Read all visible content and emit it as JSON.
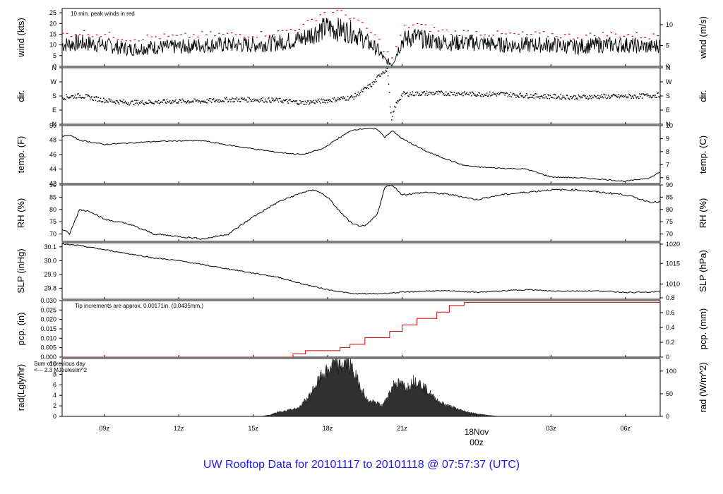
{
  "footer_title": "UW Rooftop Data for 20101117  to  20101118 @ 07:57:37  (UTC)",
  "colors": {
    "axis": "#000000",
    "peak": "#e00000",
    "annot_red": "#cc0000",
    "annot_purple": "#a000c0",
    "footer": "#1a1aff",
    "rad_fill": "#303030"
  },
  "time_axis": {
    "x_range_hours": [
      7.3,
      31.4
    ],
    "ticks": [
      {
        "hour": 9,
        "label": "09z"
      },
      {
        "hour": 12,
        "label": "12z"
      },
      {
        "hour": 15,
        "label": "15z"
      },
      {
        "hour": 18,
        "label": "18z"
      },
      {
        "hour": 21,
        "label": "21z"
      },
      {
        "hour": 27,
        "label": "03z"
      },
      {
        "hour": 30,
        "label": "06z"
      }
    ],
    "date_marker": {
      "hour": 24,
      "line1": "18Nov",
      "line2": "00z"
    }
  },
  "chart_data": [
    {
      "id": "wind",
      "type": "line",
      "left_label": "wind (kts)",
      "right_label": "wind (m/s)",
      "ylim": [
        0,
        27
      ],
      "left_ticks": [
        "0",
        "5",
        "10",
        "15",
        "20",
        "25"
      ],
      "right_ticks": [
        {
          "value": 0,
          "label": "0"
        },
        {
          "value": 9.72,
          "label": "5"
        },
        {
          "value": 19.44,
          "label": "10"
        }
      ],
      "annotation": "10 min. peak winds in red",
      "series": [
        {
          "role": "mean",
          "x": [
            7.3,
            8,
            9,
            10,
            11,
            12,
            13,
            14,
            15,
            16,
            17,
            17.5,
            18,
            18.5,
            19,
            19.5,
            20,
            20.3,
            20.6,
            21,
            21.5,
            22,
            23,
            24,
            25,
            26,
            27,
            28,
            29,
            30,
            31,
            31.4
          ],
          "values": [
            10,
            11,
            10,
            8,
            9,
            9,
            10,
            10,
            10,
            11,
            13,
            16,
            18,
            17,
            16,
            12,
            8,
            3,
            1,
            12,
            14,
            12,
            11,
            11,
            10,
            10,
            10,
            9,
            10,
            10,
            9,
            10
          ]
        },
        {
          "role": "peak",
          "x": [
            7.3,
            8,
            9,
            10,
            11,
            12,
            13,
            14,
            15,
            16,
            17,
            17.5,
            18,
            18.5,
            19,
            19.5,
            20,
            20.3,
            20.6,
            21,
            21.5,
            22,
            23,
            24,
            25,
            26,
            27,
            28,
            29,
            30,
            31,
            31.4
          ],
          "values": [
            15,
            16,
            15,
            13,
            14,
            14,
            15,
            15,
            15,
            16,
            19,
            23,
            27,
            25,
            23,
            18,
            13,
            7,
            4,
            18,
            20,
            18,
            16,
            16,
            15,
            15,
            15,
            14,
            15,
            15,
            14,
            15
          ]
        }
      ]
    },
    {
      "id": "dir",
      "type": "scatter",
      "left_label": "dir.",
      "right_label": "dir.",
      "ylim": [
        0,
        360
      ],
      "left_ticks": [
        {
          "value": 0,
          "label": "N"
        },
        {
          "value": 90,
          "label": "E"
        },
        {
          "value": 180,
          "label": "S"
        },
        {
          "value": 270,
          "label": "W"
        },
        {
          "value": 360,
          "label": "N"
        }
      ],
      "x": [
        7.3,
        8,
        9,
        10,
        11,
        12,
        13,
        14,
        15,
        16,
        17,
        18,
        19,
        19.8,
        20.2,
        20.4,
        20.55,
        20.7,
        21,
        22,
        23,
        24,
        25,
        26,
        27,
        28,
        29,
        30,
        31,
        31.4
      ],
      "values": [
        175,
        185,
        155,
        140,
        145,
        150,
        150,
        160,
        160,
        155,
        140,
        155,
        175,
        260,
        340,
        345,
        20,
        120,
        195,
        200,
        200,
        195,
        195,
        185,
        180,
        175,
        180,
        180,
        185,
        190
      ]
    },
    {
      "id": "temp",
      "type": "line",
      "left_label": "temp. (F)",
      "right_label": "temp. (C)",
      "ylim": [
        42,
        50
      ],
      "left_ticks": [
        "42",
        "44",
        "46",
        "48",
        "50"
      ],
      "right_ticks": [
        {
          "value": 42.8,
          "label": "6"
        },
        {
          "value": 44.6,
          "label": "7"
        },
        {
          "value": 46.4,
          "label": "8"
        },
        {
          "value": 48.2,
          "label": "9"
        },
        {
          "value": 50,
          "label": "10"
        }
      ],
      "x": [
        7.3,
        7.6,
        8,
        9,
        10,
        11,
        12,
        13,
        14,
        15,
        16,
        17,
        17.8,
        18.5,
        19,
        19.5,
        20,
        20.3,
        20.6,
        21,
        22,
        23,
        23.5,
        24,
        25,
        26,
        27,
        28,
        29,
        30,
        31,
        31.4
      ],
      "values": [
        48.5,
        48.7,
        48,
        47.4,
        47.6,
        47.8,
        47.9,
        47.9,
        47.3,
        46.8,
        46.3,
        46.0,
        46.8,
        48.4,
        49.4,
        49.6,
        49.5,
        48.4,
        49.3,
        48.2,
        46.4,
        45.1,
        44.5,
        44.3,
        44.1,
        44.0,
        42.9,
        42.8,
        42.6,
        42.3,
        42.8,
        43.6
      ]
    },
    {
      "id": "rh",
      "type": "line",
      "left_label": "RH (%)",
      "right_label": "RH (%)",
      "ylim": [
        67,
        90
      ],
      "left_ticks": [
        "70",
        "75",
        "80",
        "85",
        "90"
      ],
      "right_ticks": [
        {
          "value": 70,
          "label": "70"
        },
        {
          "value": 75,
          "label": "75"
        },
        {
          "value": 80,
          "label": "80"
        },
        {
          "value": 85,
          "label": "85"
        },
        {
          "value": 90,
          "label": "90"
        }
      ],
      "x": [
        7.3,
        7.6,
        8,
        8.5,
        9,
        10,
        11,
        12,
        13,
        14,
        15,
        16,
        17,
        17.5,
        18,
        18.5,
        19,
        19.5,
        20,
        20.3,
        20.6,
        21,
        22,
        23,
        23.5,
        24,
        25,
        26,
        27,
        28,
        29,
        30,
        31,
        31.4
      ],
      "values": [
        72,
        70,
        80,
        79,
        76,
        74,
        70,
        69,
        68,
        70,
        77,
        83,
        87,
        88,
        85,
        79,
        74,
        73,
        78,
        89,
        90,
        86,
        87,
        86,
        85,
        84,
        86,
        87,
        88,
        88,
        87,
        86,
        83,
        83
      ]
    },
    {
      "id": "slp",
      "type": "line",
      "left_label": "SLP (inHg)",
      "right_label": "SLP (hPa)",
      "ylim": [
        29.72,
        30.13
      ],
      "left_ticks": [
        "29.8",
        "29.9",
        "30.0",
        "30.1"
      ],
      "right_ticks": [
        {
          "value": 29.83,
          "label": "1010"
        },
        {
          "value": 29.98,
          "label": "1015"
        },
        {
          "value": 30.12,
          "label": "1020"
        }
      ],
      "x": [
        7.3,
        8,
        9,
        10,
        11,
        12,
        13,
        14,
        15,
        16,
        17,
        18,
        19,
        20,
        21,
        22,
        23,
        24,
        25,
        26,
        27,
        28,
        29,
        30,
        31,
        31.4
      ],
      "values": [
        30.12,
        30.11,
        30.08,
        30.05,
        30.02,
        30.0,
        29.97,
        29.94,
        29.91,
        29.88,
        29.83,
        29.79,
        29.76,
        29.76,
        29.77,
        29.78,
        29.78,
        29.77,
        29.78,
        29.79,
        29.78,
        29.78,
        29.78,
        29.77,
        29.77,
        29.78
      ]
    },
    {
      "id": "pcp",
      "type": "line",
      "left_label": "pcp. (in)",
      "right_label": "pcp. (mm)",
      "ylim": [
        0,
        0.03
      ],
      "left_ticks": [
        "0.000",
        "0.005",
        "0.010",
        "0.015",
        "0.020",
        "0.025",
        "0.030"
      ],
      "right_ticks": [
        {
          "value": 0,
          "label": "0"
        },
        {
          "value": 0.00787,
          "label": "0.2"
        },
        {
          "value": 0.01575,
          "label": "0.4"
        },
        {
          "value": 0.02362,
          "label": "0.6"
        },
        {
          "value": 0.0315,
          "label": "0.8"
        }
      ],
      "annotation": "Tip increments are approx. 0.00171in. (0.0435mm.)",
      "x": [
        7.3,
        16.4,
        16.6,
        17.1,
        18.5,
        18.9,
        19.5,
        20.5,
        21.0,
        21.6,
        22.4,
        22.9,
        23.5,
        31.4
      ],
      "values": [
        0,
        0,
        0.0017,
        0.0034,
        0.0051,
        0.0068,
        0.0103,
        0.0137,
        0.0171,
        0.0205,
        0.0239,
        0.0274,
        0.0291,
        0.0291
      ]
    },
    {
      "id": "rad",
      "type": "area",
      "left_label": "rad(Lgly/hr)",
      "right_label": "rad (W/m^2)",
      "ylim": [
        0,
        11
      ],
      "left_ticks": [
        "0",
        "2",
        "4",
        "6",
        "8",
        "10"
      ],
      "right_ticks": [
        {
          "value": 0,
          "label": "0"
        },
        {
          "value": 4.3,
          "label": "50"
        },
        {
          "value": 8.6,
          "label": "100"
        }
      ],
      "annotation": "Sum of previous day\n<--- 2.3 MJoules/m^2",
      "x": [
        7.3,
        15.3,
        15.7,
        16,
        16.5,
        16.8,
        17.2,
        17.6,
        17.8,
        18,
        18.2,
        18.5,
        18.8,
        19,
        19.3,
        19.6,
        20,
        20.2,
        20.5,
        20.7,
        21,
        21.2,
        21.5,
        21.8,
        22,
        22.3,
        22.6,
        23,
        23.5,
        24,
        24.5,
        24.9,
        25.5,
        31.4
      ],
      "values": [
        0,
        0,
        0.3,
        0.8,
        1.3,
        1.5,
        3.5,
        6.5,
        8,
        8.5,
        10,
        9.5,
        10.5,
        9,
        6,
        3,
        2.5,
        2,
        4.5,
        6.5,
        6,
        5.5,
        7,
        6,
        5,
        3.5,
        2.5,
        1.8,
        1,
        0.5,
        0.2,
        0,
        0,
        0
      ]
    }
  ]
}
